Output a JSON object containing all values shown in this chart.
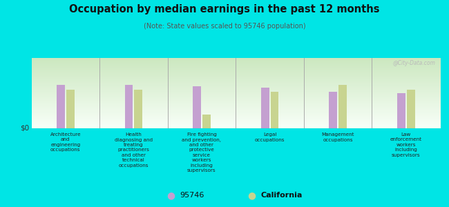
{
  "title": "Occupation by median earnings in the past 12 months",
  "subtitle": "(Note: State values scaled to 95746 population)",
  "background_color": "#00e5e5",
  "plot_bg_top": "#cce8c0",
  "plot_bg_bottom": "#f8fff8",
  "categories": [
    "Architecture\nand\nengineering\noccupations",
    "Health\ndiagnosing and\ntreating\npractitioners\nand other\ntechnical\noccupations",
    "Fire fighting\nand prevention,\nand other\nprotective\nservice\nworkers\nincluding\nsupervisors",
    "Legal\noccupations",
    "Management\noccupations",
    "Law\nenforcement\nworkers\nincluding\nsupervisors"
  ],
  "values_95746": [
    0.62,
    0.62,
    0.6,
    0.58,
    0.52,
    0.5
  ],
  "values_california": [
    0.55,
    0.55,
    0.2,
    0.52,
    0.62,
    0.55
  ],
  "color_95746": "#c4a0d0",
  "color_california": "#c8d490",
  "legend_95746": "95746",
  "legend_california": "California",
  "ylabel": "$0",
  "watermark": "@City-Data.com",
  "bar_width": 0.12,
  "bar_gap": 0.02,
  "n_cats": 6
}
